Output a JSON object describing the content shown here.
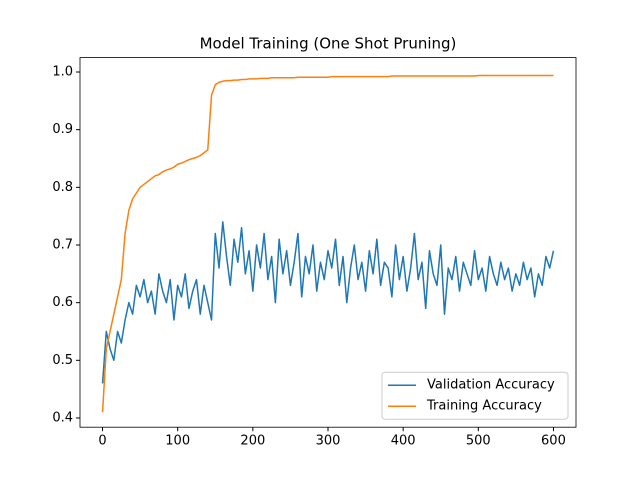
{
  "chart_data": {
    "type": "line",
    "title": "Model Training (One Shot Pruning)",
    "x": [
      0,
      5,
      10,
      15,
      20,
      25,
      30,
      35,
      40,
      45,
      50,
      55,
      60,
      65,
      70,
      75,
      80,
      85,
      90,
      95,
      100,
      105,
      110,
      115,
      120,
      125,
      130,
      135,
      140,
      145,
      150,
      155,
      160,
      165,
      170,
      175,
      180,
      185,
      190,
      195,
      200,
      205,
      210,
      215,
      220,
      225,
      230,
      235,
      240,
      245,
      250,
      255,
      260,
      265,
      270,
      275,
      280,
      285,
      290,
      295,
      300,
      305,
      310,
      315,
      320,
      325,
      330,
      335,
      340,
      345,
      350,
      355,
      360,
      365,
      370,
      375,
      380,
      385,
      390,
      395,
      400,
      405,
      410,
      415,
      420,
      425,
      430,
      435,
      440,
      445,
      450,
      455,
      460,
      465,
      470,
      475,
      480,
      485,
      490,
      495,
      500,
      505,
      510,
      515,
      520,
      525,
      530,
      535,
      540,
      545,
      550,
      555,
      560,
      565,
      570,
      575,
      580,
      585,
      590,
      595,
      600
    ],
    "series": [
      {
        "name": "Validation Accuracy",
        "color": "#1f77b4",
        "values": [
          0.46,
          0.55,
          0.52,
          0.5,
          0.55,
          0.53,
          0.57,
          0.6,
          0.58,
          0.63,
          0.61,
          0.64,
          0.6,
          0.62,
          0.58,
          0.65,
          0.62,
          0.6,
          0.64,
          0.57,
          0.63,
          0.61,
          0.65,
          0.59,
          0.62,
          0.64,
          0.58,
          0.63,
          0.6,
          0.57,
          0.72,
          0.66,
          0.74,
          0.68,
          0.63,
          0.71,
          0.67,
          0.73,
          0.65,
          0.69,
          0.62,
          0.7,
          0.66,
          0.72,
          0.64,
          0.68,
          0.6,
          0.71,
          0.65,
          0.69,
          0.63,
          0.67,
          0.72,
          0.61,
          0.68,
          0.65,
          0.7,
          0.62,
          0.67,
          0.64,
          0.69,
          0.66,
          0.71,
          0.63,
          0.68,
          0.6,
          0.66,
          0.7,
          0.64,
          0.67,
          0.62,
          0.69,
          0.65,
          0.71,
          0.63,
          0.67,
          0.66,
          0.61,
          0.7,
          0.64,
          0.68,
          0.62,
          0.66,
          0.72,
          0.64,
          0.67,
          0.59,
          0.69,
          0.65,
          0.63,
          0.7,
          0.58,
          0.66,
          0.64,
          0.68,
          0.62,
          0.67,
          0.65,
          0.63,
          0.69,
          0.64,
          0.66,
          0.62,
          0.68,
          0.65,
          0.63,
          0.67,
          0.64,
          0.66,
          0.62,
          0.65,
          0.63,
          0.67,
          0.64,
          0.66,
          0.61,
          0.65,
          0.63,
          0.68,
          0.66,
          0.69
        ]
      },
      {
        "name": "Training Accuracy",
        "color": "#ff7f0e",
        "values": [
          0.41,
          0.52,
          0.55,
          0.58,
          0.61,
          0.64,
          0.72,
          0.76,
          0.78,
          0.79,
          0.8,
          0.805,
          0.81,
          0.815,
          0.82,
          0.822,
          0.827,
          0.83,
          0.832,
          0.835,
          0.84,
          0.842,
          0.845,
          0.848,
          0.85,
          0.852,
          0.855,
          0.86,
          0.865,
          0.96,
          0.978,
          0.982,
          0.984,
          0.985,
          0.985,
          0.986,
          0.986,
          0.987,
          0.987,
          0.988,
          0.988,
          0.988,
          0.989,
          0.989,
          0.989,
          0.99,
          0.99,
          0.99,
          0.99,
          0.99,
          0.99,
          0.99,
          0.991,
          0.991,
          0.991,
          0.991,
          0.991,
          0.991,
          0.991,
          0.991,
          0.991,
          0.992,
          0.992,
          0.992,
          0.992,
          0.992,
          0.992,
          0.992,
          0.992,
          0.992,
          0.992,
          0.992,
          0.992,
          0.992,
          0.992,
          0.992,
          0.992,
          0.993,
          0.993,
          0.993,
          0.993,
          0.993,
          0.993,
          0.993,
          0.993,
          0.993,
          0.993,
          0.993,
          0.993,
          0.993,
          0.993,
          0.993,
          0.993,
          0.993,
          0.993,
          0.993,
          0.993,
          0.993,
          0.993,
          0.993,
          0.994,
          0.994,
          0.994,
          0.994,
          0.994,
          0.994,
          0.994,
          0.994,
          0.994,
          0.994,
          0.994,
          0.994,
          0.994,
          0.994,
          0.994,
          0.994,
          0.994,
          0.994,
          0.994,
          0.994,
          0.994
        ]
      }
    ],
    "xlim": [
      -30,
      630
    ],
    "xticks": [
      0,
      100,
      200,
      300,
      400,
      500,
      600
    ],
    "ylim": [
      0.384,
      1.025
    ],
    "yticks": [
      0.4,
      0.5,
      0.6,
      0.7,
      0.8,
      0.9,
      {
        "value": 1,
        "label": "1.0"
      }
    ],
    "legend": "lower right"
  }
}
